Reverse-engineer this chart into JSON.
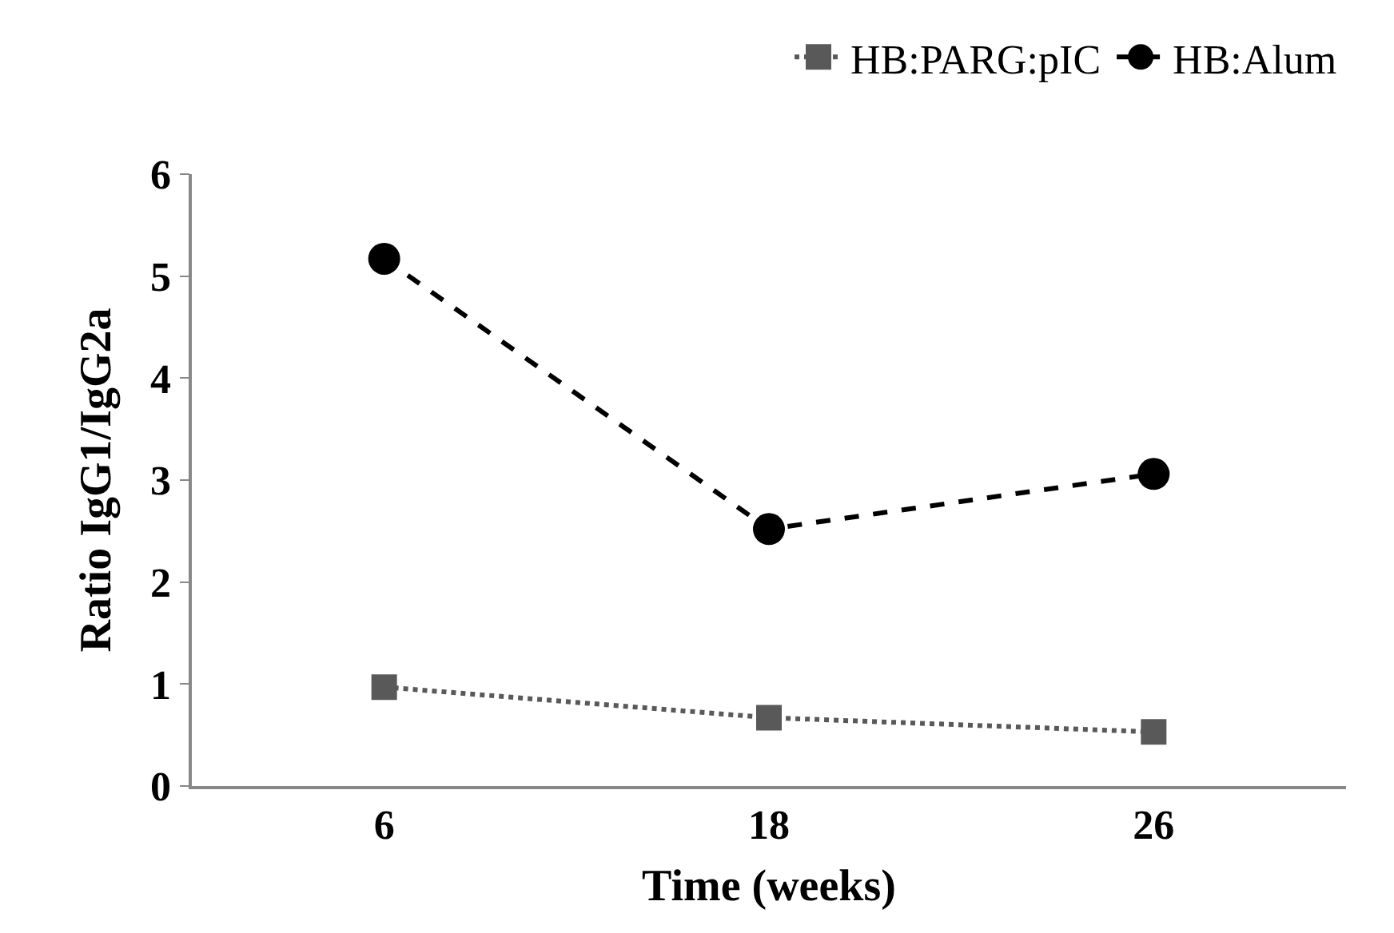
{
  "chart_data": {
    "type": "line",
    "xlabel": "Time (weeks)",
    "ylabel": "Ratio IgG1/IgG2a",
    "categories": [
      "6",
      "18",
      "26"
    ],
    "series": [
      {
        "name": "HB:PARG:pIC",
        "color": "#595959",
        "values": [
          0.97,
          0.67,
          0.53
        ],
        "marker": "square",
        "line_style": "dotted"
      },
      {
        "name": "HB:Alum",
        "color": "#000000",
        "values": [
          5.17,
          2.52,
          3.06
        ],
        "marker": "circle",
        "line_style": "dashed"
      }
    ],
    "ylim": [
      0,
      6
    ],
    "yticks": [
      0,
      1,
      2,
      3,
      4,
      5,
      6
    ],
    "grid": false,
    "legend": "top right"
  }
}
